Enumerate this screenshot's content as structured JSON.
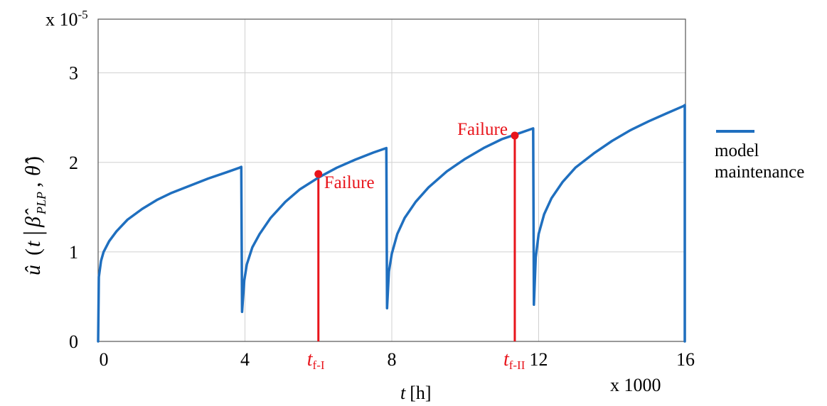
{
  "chart_data": {
    "type": "line",
    "xlabel": "t [h]",
    "xlabel_italic": "t",
    "xlabel_unit": "[h]",
    "x_multiplier": "x 1000",
    "y_multiplier": "x 10-5",
    "y_multiplier_base": "x 10",
    "y_multiplier_exp": "-5",
    "ylabel": "û (t | β̂PLP , θ̂)",
    "xlim": [
      0,
      16
    ],
    "ylim": [
      0,
      3.6
    ],
    "x_ticks": [
      0,
      4,
      8,
      12,
      16
    ],
    "x_tick_labels": [
      "0",
      "4",
      "8",
      "12",
      "16"
    ],
    "y_ticks": [
      0,
      1,
      2,
      3
    ],
    "y_tick_labels": [
      "0",
      "1",
      "2",
      "3"
    ],
    "grid": true,
    "legend_position": "right",
    "series": [
      {
        "name": "model maintenance",
        "color": "#1f6fbf",
        "segments": [
          {
            "x": [
              0,
              0.02,
              0.08,
              0.15,
              0.3,
              0.5,
              0.8,
              1.2,
              1.6,
              2.0,
              2.5,
              3.0,
              3.5,
              3.85,
              3.9
            ],
            "y": [
              0,
              0.72,
              0.9,
              1.0,
              1.12,
              1.23,
              1.36,
              1.48,
              1.58,
              1.66,
              1.74,
              1.82,
              1.89,
              1.94,
              1.95
            ]
          },
          {
            "x": [
              3.9,
              3.92,
              3.98,
              4.05,
              4.2,
              4.4,
              4.7,
              5.1,
              5.5,
              6.0,
              6.5,
              7.0,
              7.5,
              7.85
            ],
            "y": [
              1.95,
              0.33,
              0.68,
              0.86,
              1.05,
              1.2,
              1.38,
              1.56,
              1.7,
              1.83,
              1.94,
              2.03,
              2.11,
              2.16
            ]
          },
          {
            "x": [
              7.85,
              7.87,
              7.92,
              8.0,
              8.15,
              8.35,
              8.65,
              9.0,
              9.5,
              10.0,
              10.5,
              11.0,
              11.5,
              11.85
            ],
            "y": [
              2.16,
              0.37,
              0.78,
              0.98,
              1.2,
              1.38,
              1.56,
              1.72,
              1.9,
              2.04,
              2.16,
              2.26,
              2.33,
              2.38
            ]
          },
          {
            "x": [
              11.85,
              11.87,
              11.92,
              12.0,
              12.15,
              12.35,
              12.65,
              13.0,
              13.5,
              14.0,
              14.5,
              15.0,
              15.5,
              15.95,
              15.98,
              15.98
            ],
            "y": [
              2.38,
              0.41,
              0.94,
              1.2,
              1.42,
              1.6,
              1.78,
              1.94,
              2.1,
              2.24,
              2.36,
              2.46,
              2.55,
              2.63,
              2.64,
              0
            ]
          }
        ]
      }
    ],
    "failures": [
      {
        "label": "Failure",
        "tick_label_base": "t",
        "tick_label_sub": "f-I",
        "x": 6.0,
        "y": 1.87
      },
      {
        "label": "Failure",
        "tick_label_base": "t",
        "tick_label_sub": "f-II",
        "x": 11.35,
        "y": 2.3
      }
    ],
    "failure_color": "#e8141b"
  },
  "legend": {
    "line1": "model",
    "line2": "maintenance"
  }
}
